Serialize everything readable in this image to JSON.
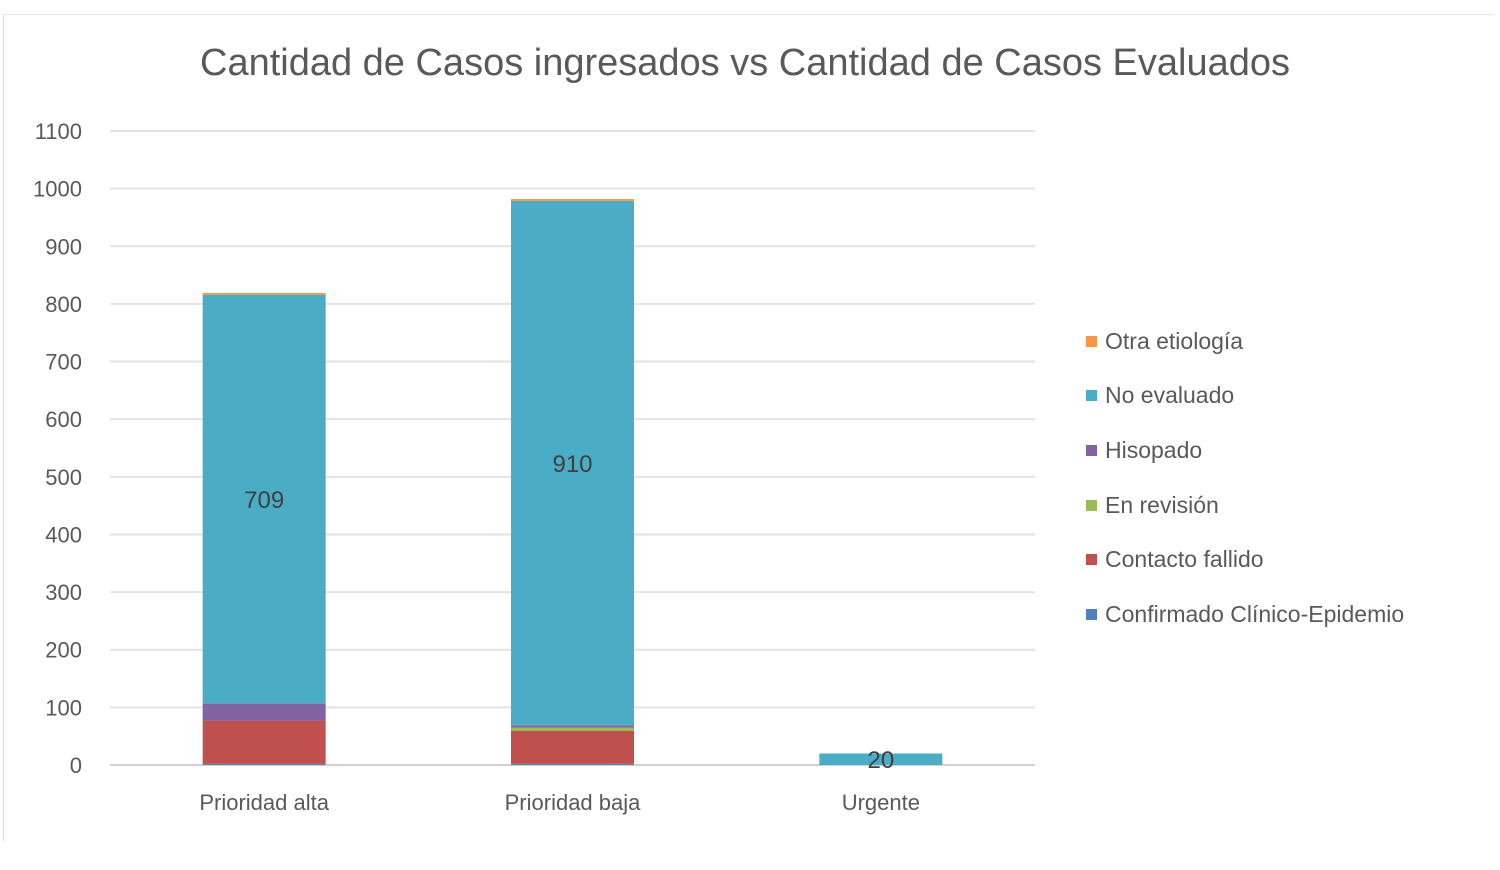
{
  "chart_data": {
    "type": "bar",
    "stacked": true,
    "title": "Cantidad de Casos ingresados vs Cantidad de Casos Evaluados",
    "xlabel": "",
    "ylabel": "",
    "ylim": [
      0,
      1100
    ],
    "yticks": [
      0,
      100,
      200,
      300,
      400,
      500,
      600,
      700,
      800,
      900,
      1000,
      1100
    ],
    "grid": true,
    "legend_position": "right",
    "categories": [
      "Prioridad alta",
      "Prioridad baja",
      "Urgente"
    ],
    "series": [
      {
        "name": "Confirmado Clínico-Epidemio",
        "color": "#4f81bd",
        "values": [
          2,
          2,
          0
        ]
      },
      {
        "name": "Contacto fallido",
        "color": "#c0504d",
        "values": [
          75,
          57,
          0
        ]
      },
      {
        "name": "En revisión",
        "color": "#9bbb59",
        "values": [
          0,
          6,
          0
        ]
      },
      {
        "name": "Hisopado",
        "color": "#8064a2",
        "values": [
          30,
          4,
          0
        ]
      },
      {
        "name": "No evaluado",
        "color": "#4bacc6",
        "values": [
          709,
          910,
          20
        ],
        "data_labels": [
          "709",
          "910",
          "20"
        ]
      },
      {
        "name": "Otra etiología",
        "color": "#f79646",
        "values": [
          3,
          3,
          0
        ]
      }
    ],
    "legend_order": [
      "Otra etiología",
      "No evaluado",
      "Hisopado",
      "En revisión",
      "Contacto fallido",
      "Confirmado Clínico-Epidemio"
    ]
  }
}
